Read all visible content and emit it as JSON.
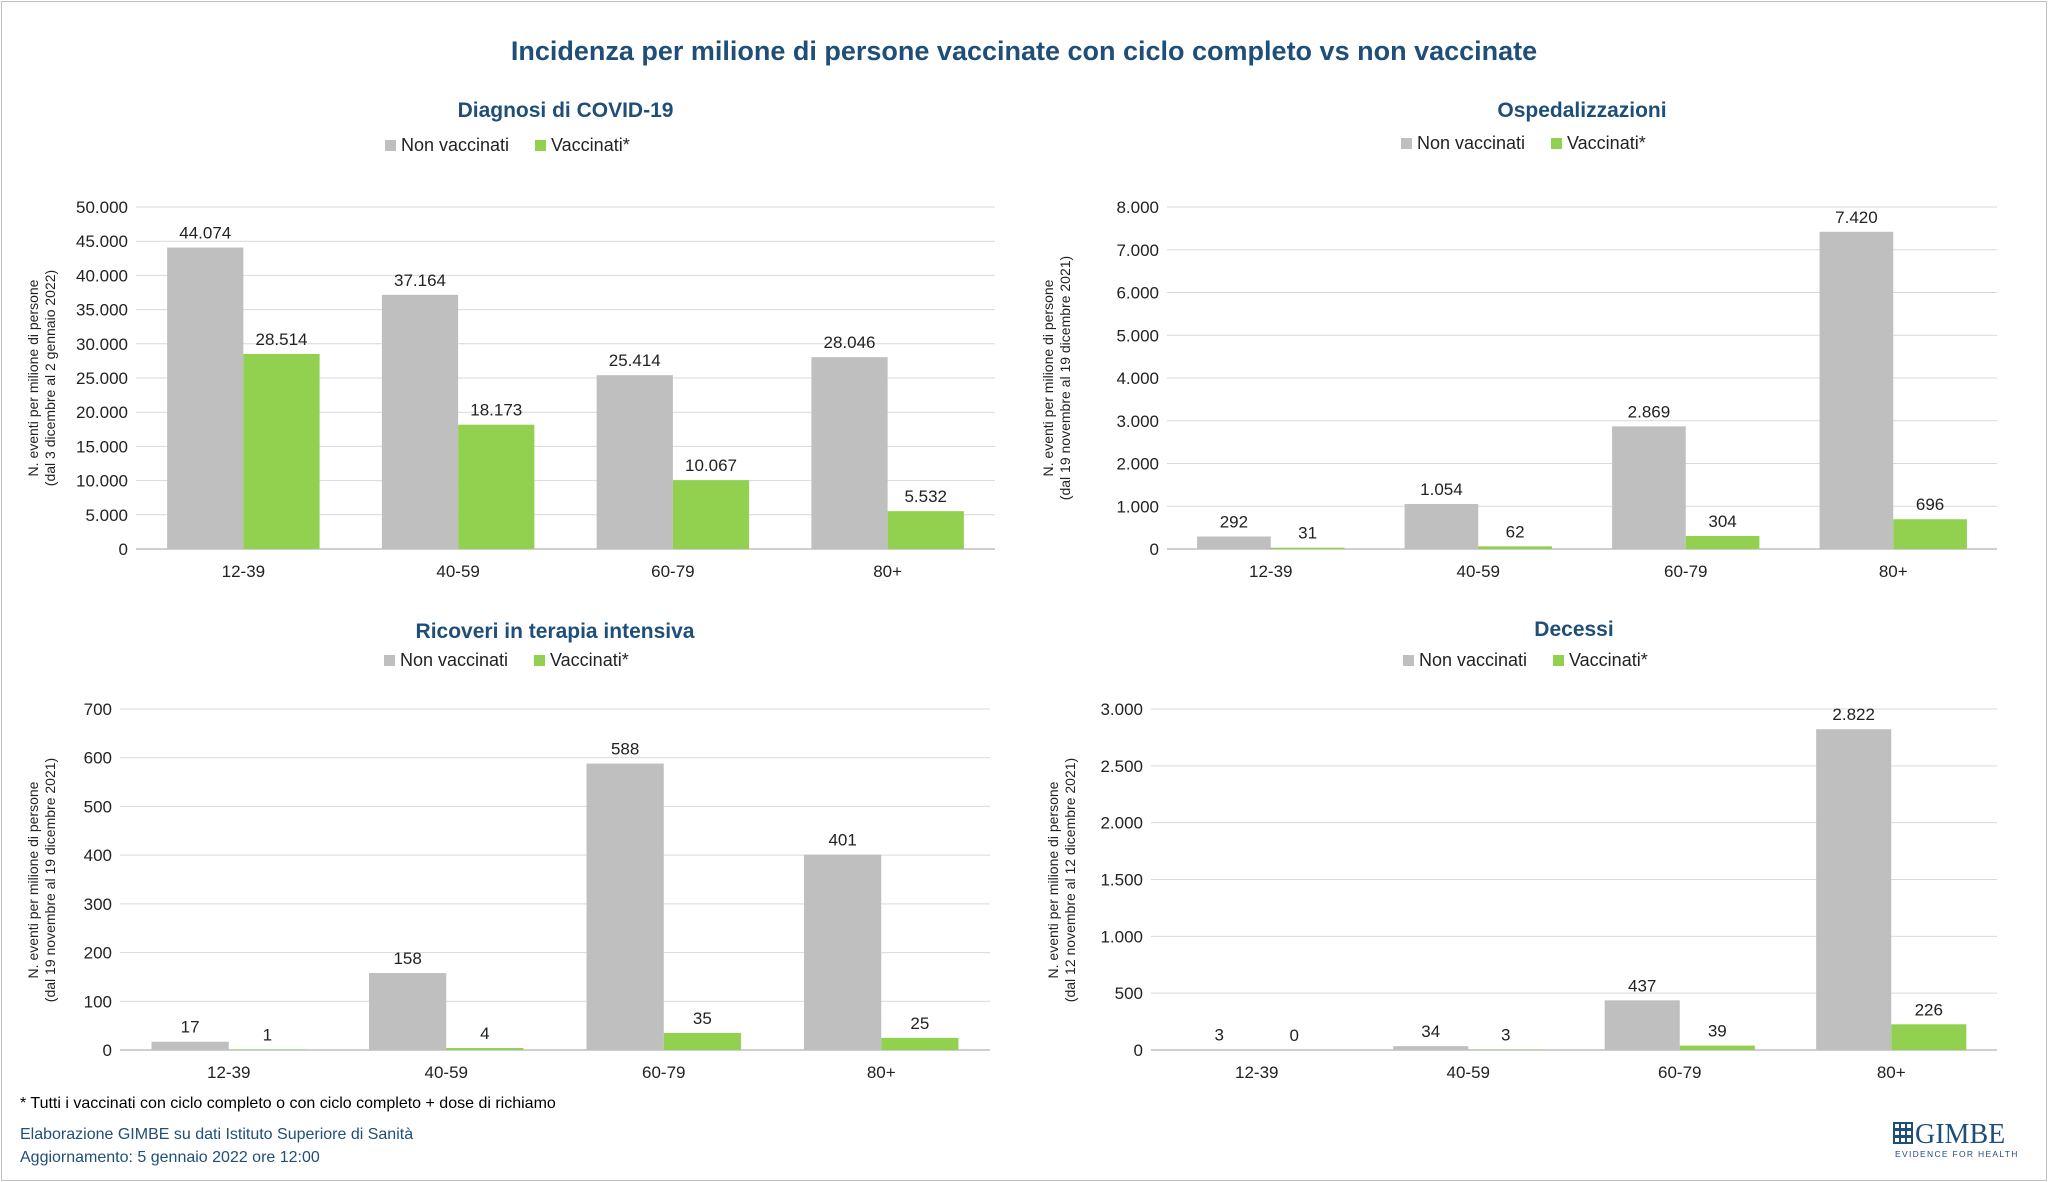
{
  "title": "Incidenza per milione di persone vaccinate con ciclo completo vs non vaccinate",
  "footnote": "* Tutti i vaccinati con ciclo completo o con ciclo completo +  dose di richiamo",
  "credit": "Elaborazione GIMBE su dati Istituto Superiore di Sanità",
  "updated": "Aggiornamento: 5 gennaio 2022 ore 12:00",
  "logo": {
    "name": "GIMBE",
    "tagline": "EVIDENCE FOR HEALTH"
  },
  "colors": {
    "non_vaccinati": "#bfbfbf",
    "vaccinati": "#92d050",
    "title": "#1f4e79",
    "grid": "#d9d9d9",
    "axis": "#bfbfbf"
  },
  "chart_data": [
    {
      "type": "bar",
      "title": "Diagnosi di COVID-19",
      "ylabel": [
        "N. eventi per milione di persone",
        "(dal 3  dicembre al 2  gennaio 2022)"
      ],
      "categories": [
        "12-39",
        "40-59",
        "60-79",
        "80+"
      ],
      "series": [
        {
          "name": "Non vaccinati",
          "values": [
            44074,
            37164,
            25414,
            28046
          ],
          "labels": [
            "44.074",
            "37.164",
            "25.414",
            "28.046"
          ]
        },
        {
          "name": "Vaccinati*",
          "values": [
            28514,
            18173,
            10067,
            5532
          ],
          "labels": [
            "28.514",
            "18.173",
            "10.067",
            "5.532"
          ]
        }
      ],
      "ylim": [
        0,
        50000
      ],
      "yticks": [
        0,
        5000,
        10000,
        15000,
        20000,
        25000,
        30000,
        35000,
        40000,
        45000,
        50000
      ],
      "ytick_labels": [
        "0",
        "5.000",
        "10.000",
        "15.000",
        "20.000",
        "25.000",
        "30.000",
        "35.000",
        "40.000",
        "45.000",
        "50.000"
      ],
      "grid": true,
      "legend": "top-center"
    },
    {
      "type": "bar",
      "title": "Ospedalizzazioni",
      "ylabel": [
        "N. eventi per milione di persone",
        "(dal 19  novembre al 19  dicembre 2021)"
      ],
      "categories": [
        "12-39",
        "40-59",
        "60-79",
        "80+"
      ],
      "series": [
        {
          "name": "Non vaccinati",
          "values": [
            292,
            1054,
            2869,
            7420
          ],
          "labels": [
            "292",
            "1.054",
            "2.869",
            "7.420"
          ]
        },
        {
          "name": "Vaccinati*",
          "values": [
            31,
            62,
            304,
            696
          ],
          "labels": [
            "31",
            "62",
            "304",
            "696"
          ]
        }
      ],
      "ylim": [
        0,
        8000
      ],
      "yticks": [
        0,
        1000,
        2000,
        3000,
        4000,
        5000,
        6000,
        7000,
        8000
      ],
      "ytick_labels": [
        "0",
        "1.000",
        "2.000",
        "3.000",
        "4.000",
        "5.000",
        "6.000",
        "7.000",
        "8.000"
      ],
      "grid": true,
      "legend": "top-center"
    },
    {
      "type": "bar",
      "title": "Ricoveri in terapia intensiva",
      "ylabel": [
        "N. eventi per milione di persone",
        "(dal 19  novembre al 19  dicembre 2021)"
      ],
      "categories": [
        "12-39",
        "40-59",
        "60-79",
        "80+"
      ],
      "series": [
        {
          "name": "Non vaccinati",
          "values": [
            17,
            158,
            588,
            401
          ],
          "labels": [
            "17",
            "158",
            "588",
            "401"
          ]
        },
        {
          "name": "Vaccinati*",
          "values": [
            1,
            4,
            35,
            25
          ],
          "labels": [
            "1",
            "4",
            "35",
            "25"
          ]
        }
      ],
      "ylim": [
        0,
        700
      ],
      "yticks": [
        0,
        100,
        200,
        300,
        400,
        500,
        600,
        700
      ],
      "ytick_labels": [
        "0",
        "100",
        "200",
        "300",
        "400",
        "500",
        "600",
        "700"
      ],
      "grid": true,
      "legend": "top-center"
    },
    {
      "type": "bar",
      "title": "Decessi",
      "ylabel": [
        "N. eventi per milione di persone",
        "(dal 12  novembre al 12  dicembre 2021)"
      ],
      "categories": [
        "12-39",
        "40-59",
        "60-79",
        "80+"
      ],
      "series": [
        {
          "name": "Non vaccinati",
          "values": [
            3,
            34,
            437,
            2822
          ],
          "labels": [
            "3",
            "34",
            "437",
            "2.822"
          ]
        },
        {
          "name": "Vaccinati*",
          "values": [
            0,
            3,
            39,
            226
          ],
          "labels": [
            "0",
            "3",
            "39",
            "226"
          ]
        }
      ],
      "ylim": [
        0,
        3000
      ],
      "yticks": [
        0,
        500,
        1000,
        1500,
        2000,
        2500,
        3000
      ],
      "ytick_labels": [
        "0",
        "500",
        "1.000",
        "1.500",
        "2.000",
        "2.500",
        "3.000"
      ],
      "grid": true,
      "legend": "top-center"
    }
  ]
}
